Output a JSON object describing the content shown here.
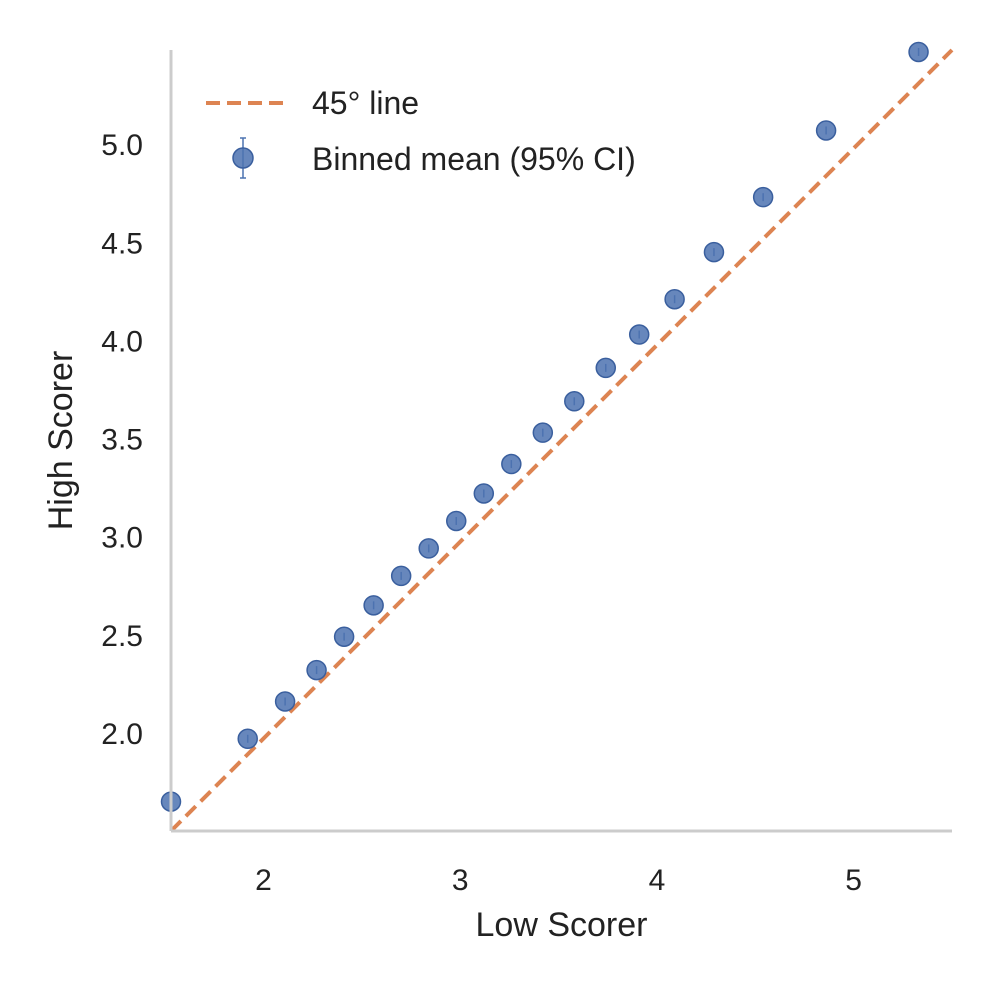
{
  "chart_data": {
    "type": "scatter",
    "title": "",
    "xlabel": "Low Scorer",
    "ylabel": "High Scorer",
    "xlim": [
      1.53,
      5.5
    ],
    "ylim": [
      1.5,
      5.48
    ],
    "xticks": [
      2,
      3,
      4,
      5
    ],
    "yticks": [
      2.0,
      2.5,
      3.0,
      3.5,
      4.0,
      4.5,
      5.0
    ],
    "xtick_labels": [
      "2",
      "3",
      "4",
      "5"
    ],
    "ytick_labels": [
      "2.0",
      "2.5",
      "3.0",
      "3.5",
      "4.0",
      "4.5",
      "5.0"
    ],
    "grid": false,
    "legend_position": "upper-left",
    "series": [
      {
        "name": "45° line",
        "kind": "line",
        "style": "dashed",
        "color": "#dd8452",
        "x": [
          1.53,
          5.5
        ],
        "y": [
          1.5,
          5.48
        ]
      },
      {
        "name": "Binned mean (95% CI)",
        "kind": "errorbar",
        "color": "#4c72b0",
        "x": [
          1.53,
          1.92,
          2.11,
          2.27,
          2.41,
          2.56,
          2.7,
          2.84,
          2.98,
          3.12,
          3.26,
          3.42,
          3.58,
          3.74,
          3.91,
          4.09,
          4.29,
          4.54,
          4.86,
          5.33
        ],
        "y": [
          1.65,
          1.97,
          2.16,
          2.32,
          2.49,
          2.65,
          2.8,
          2.94,
          3.08,
          3.22,
          3.37,
          3.53,
          3.69,
          3.86,
          4.03,
          4.21,
          4.45,
          4.73,
          5.07,
          5.47
        ]
      }
    ]
  }
}
